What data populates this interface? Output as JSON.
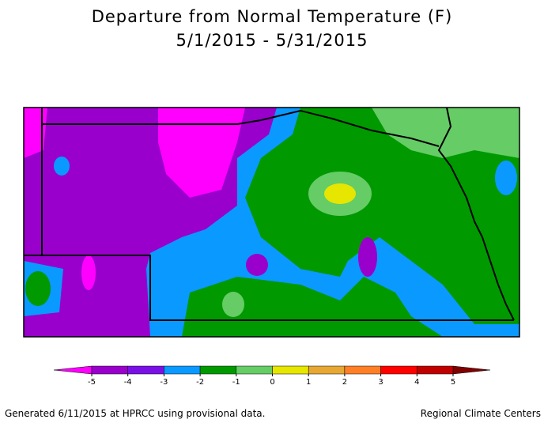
{
  "header": {
    "title": "Departure from Normal Temperature (F)",
    "subtitle": "5/1/2015 - 5/31/2015"
  },
  "legend": {
    "ticks": [
      -5,
      -4,
      -3,
      -2,
      -1,
      0,
      1,
      2,
      3,
      4,
      5
    ],
    "under_color": "#ff00ff",
    "over_color": "#800000",
    "colors": [
      "#9900cc",
      "#7a10e6",
      "#0a99ff",
      "#009900",
      "#66cc66",
      "#e6e600",
      "#e6a833",
      "#ff7f27",
      "#ff0000",
      "#c00000"
    ]
  },
  "footer": {
    "left": "Generated 6/11/2015 at HPRCC using provisional data.",
    "right": "Regional Climate Centers"
  }
}
